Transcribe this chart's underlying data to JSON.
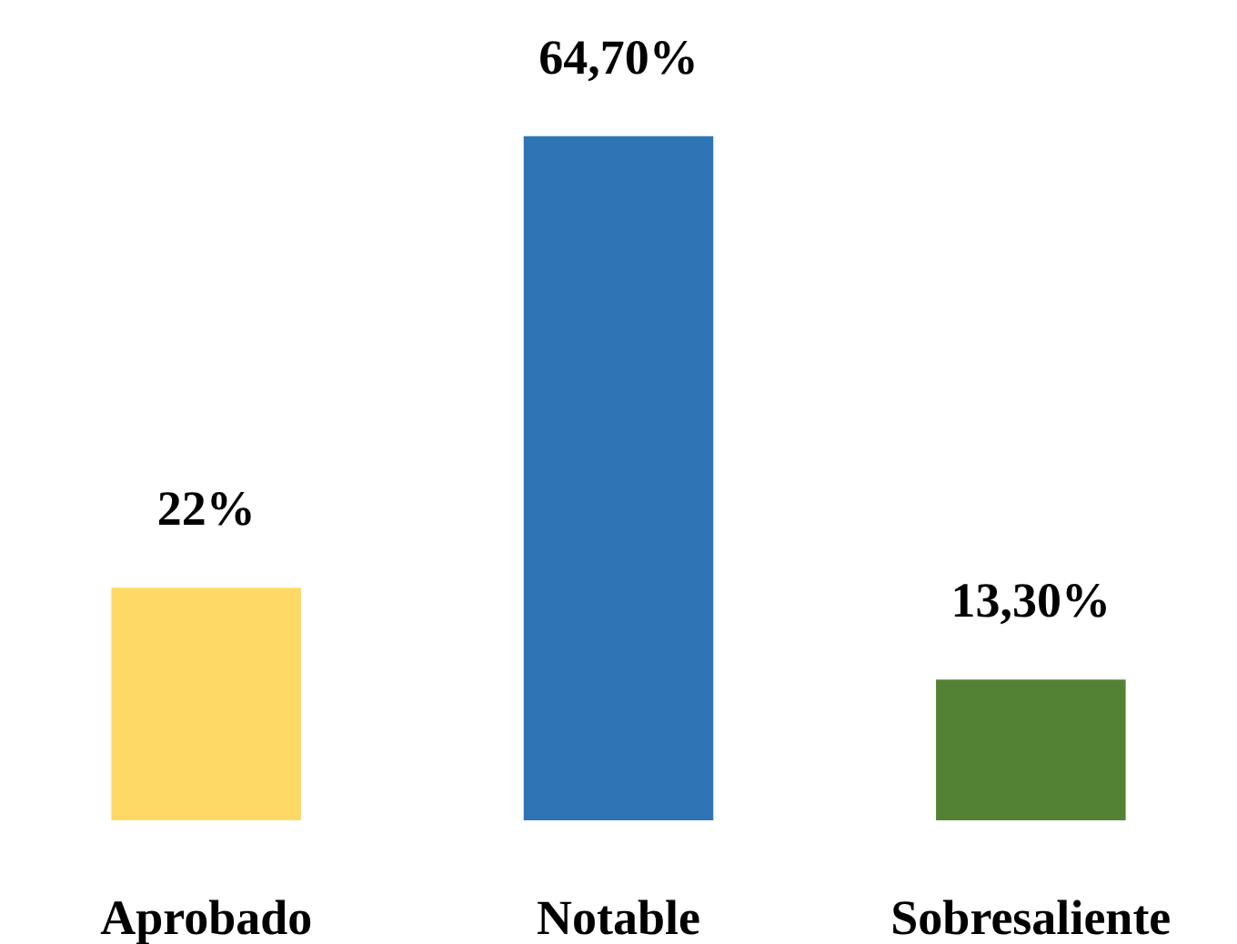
{
  "chart_data": {
    "type": "bar",
    "categories": [
      "Aprobado",
      "Notable",
      "Sobresaliente"
    ],
    "values": [
      22,
      64.7,
      13.3
    ],
    "colors": [
      "#ffd966",
      "#2e75b6",
      "#548235"
    ],
    "value_labels": [
      "22%",
      "64,70%",
      "13,30%"
    ]
  }
}
